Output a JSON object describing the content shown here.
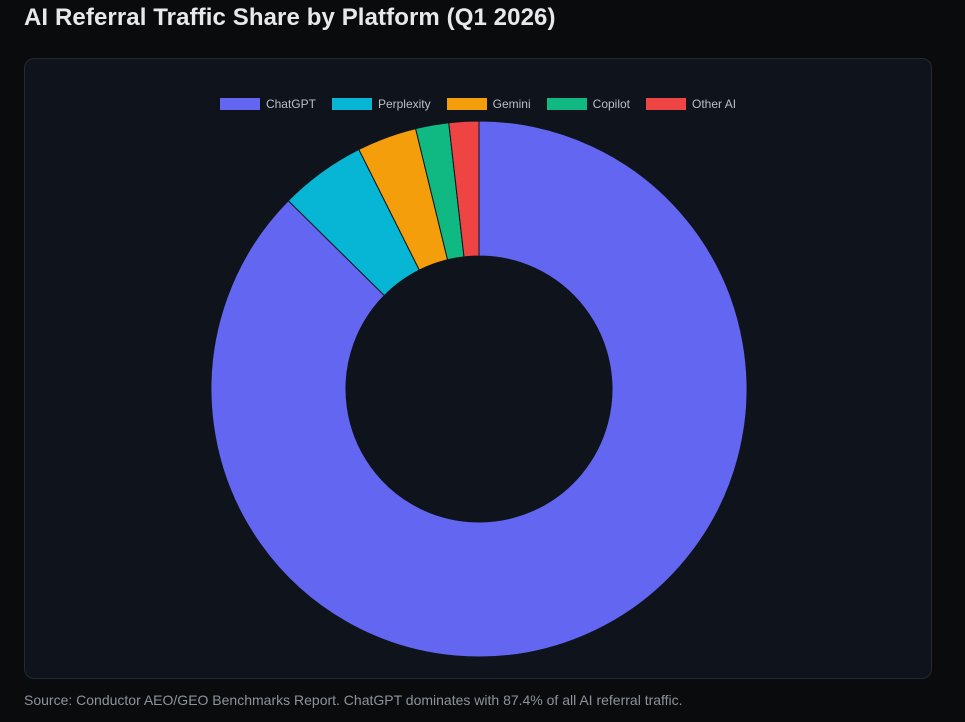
{
  "page": {
    "title": "AI Referral Traffic Share by Platform (Q1 2026)",
    "caption": "Source: Conductor AEO/GEO Benchmarks Report. ChatGPT dominates with 87.4% of all AI referral traffic."
  },
  "chart_data": {
    "type": "pie",
    "variant": "doughnut",
    "title": "AI Referral Traffic Share by Platform (Q1 2026)",
    "legend_position": "top",
    "categories": [
      "ChatGPT",
      "Perplexity",
      "Gemini",
      "Copilot",
      "Other AI"
    ],
    "values": [
      87.4,
      5.2,
      3.6,
      2.0,
      1.8
    ],
    "unit": "%",
    "colors": [
      "#6366f1",
      "#06b6d4",
      "#f59e0b",
      "#10b981",
      "#ef4444"
    ]
  },
  "colors": {
    "background": "#0a0b0d",
    "card": "#0f141c",
    "card_border": "#232a35",
    "hole": "#0f141c"
  }
}
